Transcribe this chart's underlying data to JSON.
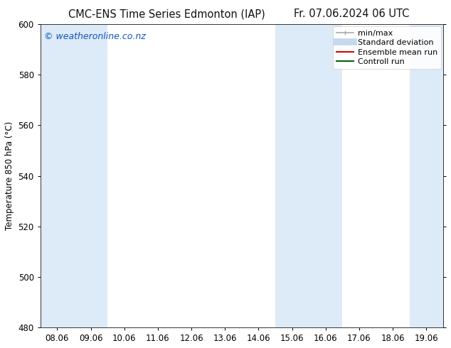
{
  "title_left": "CMC-ENS Time Series Edmonton (IAP)",
  "title_right": "Fr. 07.06.2024 06 UTC",
  "ylabel": "Temperature 850 hPa (°C)",
  "ylim": [
    480,
    600
  ],
  "yticks": [
    480,
    500,
    520,
    540,
    560,
    580,
    600
  ],
  "xtick_labels": [
    "08.06",
    "09.06",
    "10.06",
    "11.06",
    "12.06",
    "13.06",
    "14.06",
    "15.06",
    "16.06",
    "17.06",
    "18.06",
    "19.06"
  ],
  "background_color": "#ffffff",
  "plot_bg_color": "#ffffff",
  "shaded_band_indices": [
    0,
    1,
    7,
    8,
    11
  ],
  "shaded_color": "#ddeaf7",
  "watermark_text": "© weatheronline.co.nz",
  "watermark_color": "#1155bb",
  "legend_entries": [
    {
      "label": "min/max",
      "color": "#aaaaaa",
      "lw": 1.2,
      "style": "errorbar"
    },
    {
      "label": "Standard deviation",
      "color": "#c5d8ed",
      "lw": 7,
      "style": "line"
    },
    {
      "label": "Ensemble mean run",
      "color": "#dd0000",
      "lw": 1.5,
      "style": "line"
    },
    {
      "label": "Controll run",
      "color": "#006600",
      "lw": 1.5,
      "style": "line"
    }
  ],
  "title_fontsize": 10.5,
  "tick_fontsize": 8.5,
  "ylabel_fontsize": 8.5,
  "legend_fontsize": 8,
  "watermark_fontsize": 9
}
